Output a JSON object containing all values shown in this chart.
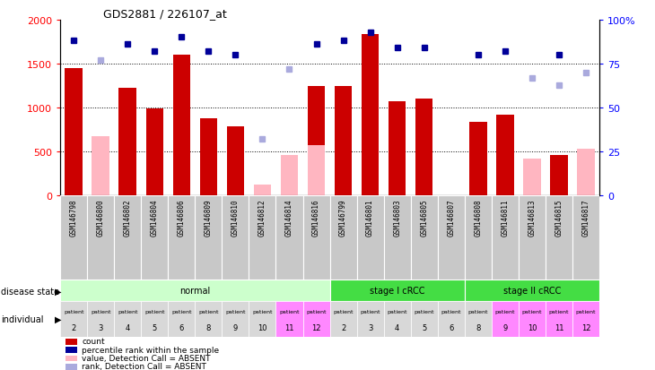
{
  "title": "GDS2881 / 226107_at",
  "samples": [
    "GSM146798",
    "GSM146800",
    "GSM146802",
    "GSM146804",
    "GSM146806",
    "GSM146809",
    "GSM146810",
    "GSM146812",
    "GSM146814",
    "GSM146816",
    "GSM146799",
    "GSM146801",
    "GSM146803",
    "GSM146805",
    "GSM146807",
    "GSM146808",
    "GSM146811",
    "GSM146813",
    "GSM146815",
    "GSM146817"
  ],
  "count_values": [
    1450,
    null,
    1220,
    990,
    1600,
    880,
    790,
    null,
    null,
    1250,
    1250,
    1840,
    1070,
    1100,
    null,
    840,
    920,
    null,
    460,
    null
  ],
  "count_absent": [
    null,
    680,
    null,
    null,
    null,
    null,
    null,
    130,
    460,
    570,
    null,
    null,
    null,
    null,
    null,
    null,
    null,
    420,
    null,
    530
  ],
  "rank_present": [
    88,
    null,
    86,
    82,
    90,
    82,
    80,
    null,
    null,
    86,
    88,
    93,
    84,
    84,
    null,
    80,
    82,
    null,
    80,
    null
  ],
  "rank_absent": [
    null,
    77,
    null,
    null,
    null,
    null,
    null,
    32,
    72,
    null,
    null,
    null,
    null,
    null,
    null,
    null,
    null,
    67,
    63,
    70
  ],
  "disease_groups": [
    {
      "label": "normal",
      "start": 0,
      "end": 10,
      "color": "#CCFFCC"
    },
    {
      "label": "stage I cRCC",
      "start": 10,
      "end": 15,
      "color": "#44DD44"
    },
    {
      "label": "stage II cRCC",
      "start": 15,
      "end": 20,
      "color": "#44DD44"
    }
  ],
  "individual_labels_top": [
    "patient",
    "patient",
    "patient",
    "patient",
    "patient",
    "patient",
    "patient",
    "patient",
    "patient",
    "patient",
    "patient",
    "patient",
    "patient",
    "patient",
    "patient",
    "patient",
    "patient",
    "patient",
    "patient",
    "patient"
  ],
  "individual_numbers": [
    "2",
    "3",
    "4",
    "5",
    "6",
    "8",
    "9",
    "10",
    "11",
    "12",
    "2",
    "3",
    "4",
    "5",
    "6",
    "8",
    "9",
    "10",
    "11",
    "12"
  ],
  "individual_colors": [
    "#D8D8D8",
    "#D8D8D8",
    "#D8D8D8",
    "#D8D8D8",
    "#D8D8D8",
    "#D8D8D8",
    "#D8D8D8",
    "#D8D8D8",
    "#FF88FF",
    "#FF88FF",
    "#D8D8D8",
    "#D8D8D8",
    "#D8D8D8",
    "#D8D8D8",
    "#D8D8D8",
    "#D8D8D8",
    "#FF88FF",
    "#FF88FF",
    "#FF88FF",
    "#FF88FF"
  ],
  "ylim": [
    0,
    2000
  ],
  "y2lim": [
    0,
    100
  ],
  "yticks": [
    0,
    500,
    1000,
    1500,
    2000
  ],
  "y2ticks": [
    0,
    25,
    50,
    75,
    100
  ],
  "bar_color_present": "#CC0000",
  "bar_color_absent": "#FFB6C1",
  "dot_color_present": "#000099",
  "dot_color_absent": "#AAAADD",
  "sample_bg_color": "#C8C8C8",
  "bg_white": "#FFFFFF"
}
